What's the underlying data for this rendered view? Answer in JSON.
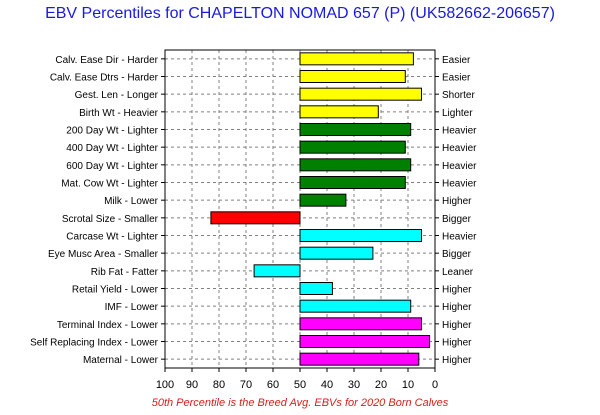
{
  "chart_data": {
    "type": "bar",
    "orientation": "horizontal",
    "title": "EBV Percentiles for CHAPELTON NOMAD 657 (P) (UK582662-206657)",
    "footnote": "50th Percentile is the Breed Avg. EBVs for 2020 Born Calves",
    "xlim": [
      100,
      0
    ],
    "baseline": 50,
    "x_ticks": [
      "100",
      "90",
      "80",
      "70",
      "60",
      "50",
      "40",
      "30",
      "20",
      "10",
      "0"
    ],
    "grid": true,
    "rows": [
      {
        "left": "Calv. Ease Dir - Harder",
        "right": "Easier",
        "value": 8,
        "color": "#ffff00"
      },
      {
        "left": "Calv. Ease Dtrs - Harder",
        "right": "Easier",
        "value": 11,
        "color": "#ffff00"
      },
      {
        "left": "Gest. Len - Longer",
        "right": "Shorter",
        "value": 5,
        "color": "#ffff00"
      },
      {
        "left": "Birth Wt - Heavier",
        "right": "Lighter",
        "value": 21,
        "color": "#ffff00"
      },
      {
        "left": "200 Day Wt - Lighter",
        "right": "Heavier",
        "value": 9,
        "color": "#008000"
      },
      {
        "left": "400 Day Wt - Lighter",
        "right": "Heavier",
        "value": 11,
        "color": "#008000"
      },
      {
        "left": "600 Day Wt - Lighter",
        "right": "Heavier",
        "value": 9,
        "color": "#008000"
      },
      {
        "left": "Mat. Cow Wt - Lighter",
        "right": "Heavier",
        "value": 11,
        "color": "#008000"
      },
      {
        "left": "Milk - Lower",
        "right": "Higher",
        "value": 33,
        "color": "#008000"
      },
      {
        "left": "Scrotal Size - Smaller",
        "right": "Bigger",
        "value": 83,
        "color": "#ff0000"
      },
      {
        "left": "Carcase Wt - Lighter",
        "right": "Heavier",
        "value": 5,
        "color": "#00ffff"
      },
      {
        "left": "Eye Musc Area - Smaller",
        "right": "Bigger",
        "value": 23,
        "color": "#00ffff"
      },
      {
        "left": "Rib Fat - Fatter",
        "right": "Leaner",
        "value": 67,
        "color": "#00ffff"
      },
      {
        "left": "Retail Yield - Lower",
        "right": "Higher",
        "value": 38,
        "color": "#00ffff"
      },
      {
        "left": "IMF - Lower",
        "right": "Higher",
        "value": 9,
        "color": "#00ffff"
      },
      {
        "left": "Terminal Index - Lower",
        "right": "Higher",
        "value": 5,
        "color": "#ff00ff"
      },
      {
        "left": "Self Replacing Index - Lower",
        "right": "Higher",
        "value": 2,
        "color": "#ff00ff"
      },
      {
        "left": "Maternal - Lower",
        "right": "Higher",
        "value": 6,
        "color": "#ff00ff"
      }
    ]
  }
}
